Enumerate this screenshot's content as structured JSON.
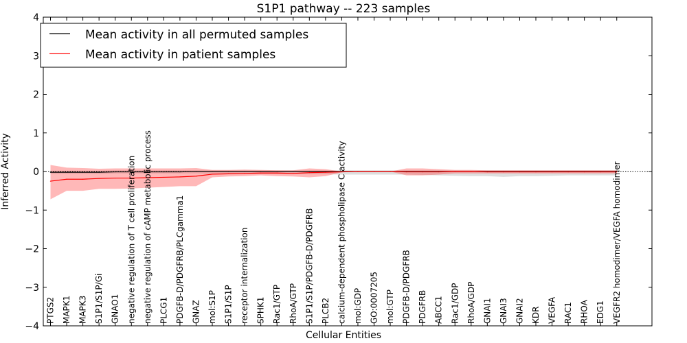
{
  "chart_data": {
    "type": "line",
    "title": "S1P1 pathway -- 223 samples",
    "xlabel": "Cellular Entities",
    "ylabel": "Inferred Activity",
    "ylim": [
      -4,
      4
    ],
    "yticks": [
      -4,
      -3,
      -2,
      -1,
      0,
      1,
      2,
      3,
      4
    ],
    "ytick_labels": [
      "−4",
      "−3",
      "−2",
      "−1",
      "0",
      "1",
      "2",
      "3",
      "4"
    ],
    "legend_position": "top-left",
    "categories": [
      "PTGS2",
      "MAPK1",
      "MAPK3",
      "S1P1/S1P/Gi",
      "GNAO1",
      "negative regulation of T cell proliferation",
      "negative regulation of cAMP metabolic process",
      "PLCG1",
      "PDGFB-D/PDGFRB/PLCgamma1",
      "GNAZ",
      "mol:S1P",
      "S1P1/S1P",
      "receptor internalization",
      "SPHK1",
      "Rac1/GTP",
      "RhoA/GTP",
      "S1P1/S1P/PDGFB-D/PDGFRB",
      "PLCB2",
      "calcium-dependent phospholipase C activity",
      "mol:GDP",
      "GO:0007205",
      "mol:GTP",
      "PDGFB-D/PDGFRB",
      "PDGFRB",
      "ABCC1",
      "Rac1/GDP",
      "RhoA/GDP",
      "GNAI1",
      "GNAI3",
      "GNAI2",
      "KDR",
      "VEGFA",
      "RAC1",
      "RHOA",
      "EDG1",
      "VEGFR2 homodimer/VEGFA homodimer"
    ],
    "series": [
      {
        "name": "Mean activity in all permuted samples",
        "color": "#000000",
        "values": [
          -0.02,
          -0.02,
          -0.02,
          -0.02,
          -0.01,
          -0.01,
          -0.01,
          -0.01,
          -0.01,
          0.0,
          0.0,
          0.0,
          0.0,
          0.0,
          0.0,
          0.0,
          0.0,
          0.0,
          0.0,
          0.0,
          0.0,
          0.0,
          0.0,
          0.0,
          0.0,
          0.0,
          0.0,
          0.0,
          0.0,
          0.0,
          0.0,
          0.0,
          0.0,
          0.0,
          0.0,
          0.0
        ],
        "band_upper": [
          0.02,
          0.02,
          0.02,
          0.02,
          0.03,
          0.03,
          0.03,
          0.03,
          0.03,
          0.03,
          0.03,
          0.03,
          0.03,
          0.03,
          0.03,
          0.03,
          0.03,
          0.03,
          0.03,
          0.03,
          0.03,
          0.03,
          0.03,
          0.03,
          0.03,
          0.03,
          0.03,
          0.03,
          0.03,
          0.03,
          0.03,
          0.03,
          0.03,
          0.03,
          0.03,
          0.03
        ],
        "band_lower": [
          -0.06,
          -0.06,
          -0.06,
          -0.06,
          -0.05,
          -0.05,
          -0.05,
          -0.05,
          -0.05,
          -0.05,
          -0.06,
          -0.06,
          -0.06,
          -0.06,
          -0.06,
          -0.06,
          -0.07,
          -0.07,
          -0.08,
          -0.08,
          -0.08,
          -0.08,
          -0.08,
          -0.09,
          -0.1,
          -0.11,
          -0.12,
          -0.12,
          -0.14,
          -0.12,
          -0.12,
          -0.11,
          -0.1,
          -0.1,
          -0.1,
          -0.1
        ]
      },
      {
        "name": "Mean activity in patient samples",
        "color": "#ff0000",
        "values": [
          -0.25,
          -0.2,
          -0.2,
          -0.18,
          -0.17,
          -0.17,
          -0.16,
          -0.15,
          -0.14,
          -0.12,
          -0.07,
          -0.06,
          -0.05,
          -0.04,
          -0.04,
          -0.05,
          -0.03,
          -0.02,
          -0.01,
          0.0,
          0.0,
          0.0,
          -0.01,
          -0.01,
          -0.01,
          0.0,
          0.0,
          -0.01,
          -0.01,
          -0.01,
          -0.01,
          -0.01,
          -0.01,
          -0.01,
          -0.01,
          -0.01
        ],
        "band_upper": [
          0.17,
          0.1,
          0.09,
          0.07,
          0.08,
          0.08,
          0.08,
          0.08,
          0.08,
          0.09,
          0.04,
          0.04,
          0.05,
          0.04,
          0.03,
          0.03,
          0.08,
          0.06,
          0.0,
          0.0,
          0.0,
          0.0,
          0.08,
          0.08,
          0.06,
          0.04,
          0.04,
          0.03,
          0.03,
          0.03,
          0.03,
          0.03,
          0.03,
          0.03,
          0.03,
          0.03
        ],
        "band_lower": [
          -0.72,
          -0.5,
          -0.5,
          -0.45,
          -0.45,
          -0.44,
          -0.42,
          -0.4,
          -0.38,
          -0.38,
          -0.15,
          -0.13,
          -0.12,
          -0.1,
          -0.12,
          -0.13,
          -0.15,
          -0.12,
          -0.02,
          0.0,
          0.0,
          0.0,
          -0.1,
          -0.1,
          -0.08,
          -0.05,
          -0.05,
          -0.05,
          -0.05,
          -0.05,
          -0.05,
          -0.05,
          -0.05,
          -0.05,
          -0.05,
          -0.05
        ]
      }
    ]
  }
}
